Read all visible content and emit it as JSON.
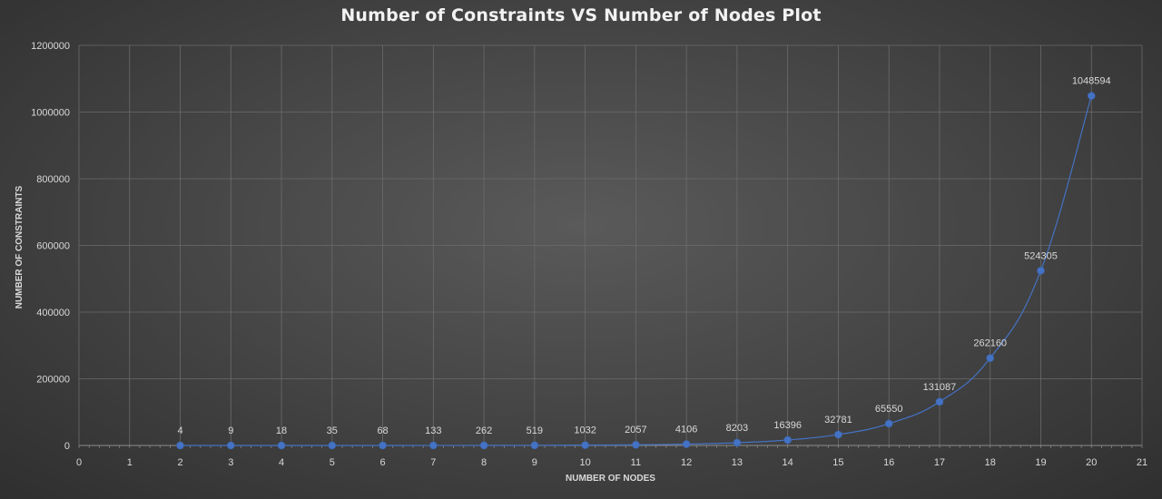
{
  "chart_data": {
    "type": "scatter",
    "title": "Number of Constraints VS Number of Nodes Plot",
    "xlabel": "NUMBER OF NODES",
    "ylabel": "NUMBER OF CONSTRAINTS",
    "xlim": [
      0,
      21
    ],
    "ylim": [
      0,
      1200000
    ],
    "xticks": [
      0,
      1,
      2,
      3,
      4,
      5,
      6,
      7,
      8,
      9,
      10,
      11,
      12,
      13,
      14,
      15,
      16,
      17,
      18,
      19,
      20,
      21
    ],
    "yticks": [
      0,
      200000,
      400000,
      600000,
      800000,
      1000000,
      1200000
    ],
    "grid": true,
    "smooth_line": true,
    "series": [
      {
        "x": [
          2,
          3,
          4,
          5,
          6,
          7,
          8,
          9,
          10,
          11,
          12,
          13,
          14,
          15,
          16,
          17,
          18,
          19,
          20
        ],
        "values": [
          4,
          9,
          18,
          35,
          68,
          133,
          262,
          519,
          1032,
          2057,
          4106,
          8203,
          16396,
          32781,
          65550,
          131087,
          262160,
          524305,
          1048594
        ]
      }
    ],
    "colors": {
      "series": "#4472c4",
      "marker": "#4472c4",
      "grid": "#6b6b6b",
      "text": "#d9d9d9"
    }
  }
}
